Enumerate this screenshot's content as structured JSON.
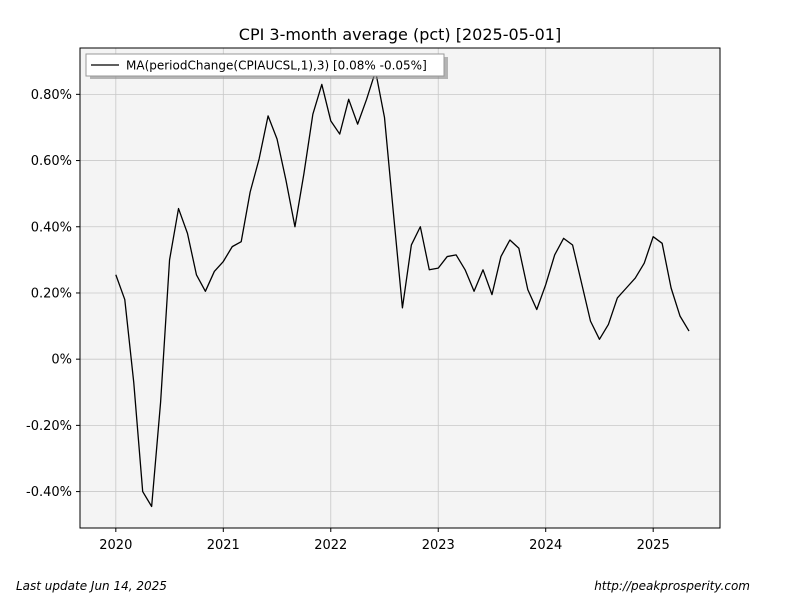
{
  "chart_data": {
    "type": "line",
    "title": "CPI 3-month average (pct) [2025-05-01]",
    "xlabel": "",
    "ylabel": "",
    "x_ticks": [
      "2020",
      "2021",
      "2022",
      "2023",
      "2024",
      "2025"
    ],
    "y_ticks": [
      "-0.40%",
      "-0.20%",
      "0%",
      "0.20%",
      "0.40%",
      "0.60%",
      "0.80%"
    ],
    "xlim": [
      "2019-09-01",
      "2025-08-15"
    ],
    "ylim": [
      -0.51,
      0.94
    ],
    "grid": true,
    "legend_position": "top-left",
    "series": [
      {
        "name": "MA(periodChange(CPIAUCSL,1),3) [0.08% -0.05%]",
        "color": "#000000",
        "points": [
          [
            "2020-01-01",
            0.255
          ],
          [
            "2020-02-01",
            0.18
          ],
          [
            "2020-03-01",
            -0.07
          ],
          [
            "2020-04-01",
            -0.4
          ],
          [
            "2020-05-01",
            -0.445
          ],
          [
            "2020-06-01",
            -0.13
          ],
          [
            "2020-07-01",
            0.3
          ],
          [
            "2020-08-01",
            0.455
          ],
          [
            "2020-09-01",
            0.38
          ],
          [
            "2020-10-01",
            0.255
          ],
          [
            "2020-11-01",
            0.205
          ],
          [
            "2020-12-01",
            0.265
          ],
          [
            "2021-01-01",
            0.295
          ],
          [
            "2021-02-01",
            0.34
          ],
          [
            "2021-03-01",
            0.355
          ],
          [
            "2021-04-01",
            0.505
          ],
          [
            "2021-05-01",
            0.605
          ],
          [
            "2021-06-01",
            0.735
          ],
          [
            "2021-07-01",
            0.665
          ],
          [
            "2021-08-01",
            0.54
          ],
          [
            "2021-09-01",
            0.4
          ],
          [
            "2021-10-01",
            0.56
          ],
          [
            "2021-11-01",
            0.74
          ],
          [
            "2021-12-01",
            0.83
          ],
          [
            "2022-01-01",
            0.72
          ],
          [
            "2022-02-01",
            0.68
          ],
          [
            "2022-03-01",
            0.785
          ],
          [
            "2022-04-01",
            0.71
          ],
          [
            "2022-05-01",
            0.785
          ],
          [
            "2022-06-01",
            0.87
          ],
          [
            "2022-07-01",
            0.73
          ],
          [
            "2022-08-01",
            0.44
          ],
          [
            "2022-09-01",
            0.155
          ],
          [
            "2022-10-01",
            0.345
          ],
          [
            "2022-11-01",
            0.4
          ],
          [
            "2022-12-01",
            0.27
          ],
          [
            "2023-01-01",
            0.275
          ],
          [
            "2023-02-01",
            0.31
          ],
          [
            "2023-03-01",
            0.315
          ],
          [
            "2023-04-01",
            0.27
          ],
          [
            "2023-05-01",
            0.205
          ],
          [
            "2023-06-01",
            0.27
          ],
          [
            "2023-07-01",
            0.195
          ],
          [
            "2023-08-01",
            0.31
          ],
          [
            "2023-09-01",
            0.36
          ],
          [
            "2023-10-01",
            0.335
          ],
          [
            "2023-11-01",
            0.21
          ],
          [
            "2023-12-01",
            0.15
          ],
          [
            "2024-01-01",
            0.225
          ],
          [
            "2024-02-01",
            0.315
          ],
          [
            "2024-03-01",
            0.365
          ],
          [
            "2024-04-01",
            0.345
          ],
          [
            "2024-05-01",
            0.23
          ],
          [
            "2024-06-01",
            0.115
          ],
          [
            "2024-07-01",
            0.06
          ],
          [
            "2024-08-01",
            0.105
          ],
          [
            "2024-09-01",
            0.185
          ],
          [
            "2024-10-01",
            0.215
          ],
          [
            "2024-11-01",
            0.245
          ],
          [
            "2024-12-01",
            0.29
          ],
          [
            "2025-01-01",
            0.37
          ],
          [
            "2025-02-01",
            0.35
          ],
          [
            "2025-03-01",
            0.215
          ],
          [
            "2025-04-01",
            0.13
          ],
          [
            "2025-05-01",
            0.085
          ]
        ]
      }
    ]
  },
  "footer": {
    "last_update": "Last update Jun 14, 2025",
    "source_url": "http://peakprosperity.com"
  },
  "colors": {
    "plot_background": "#f4f4f4",
    "grid": "#c8c8c8",
    "line": "#000000"
  }
}
